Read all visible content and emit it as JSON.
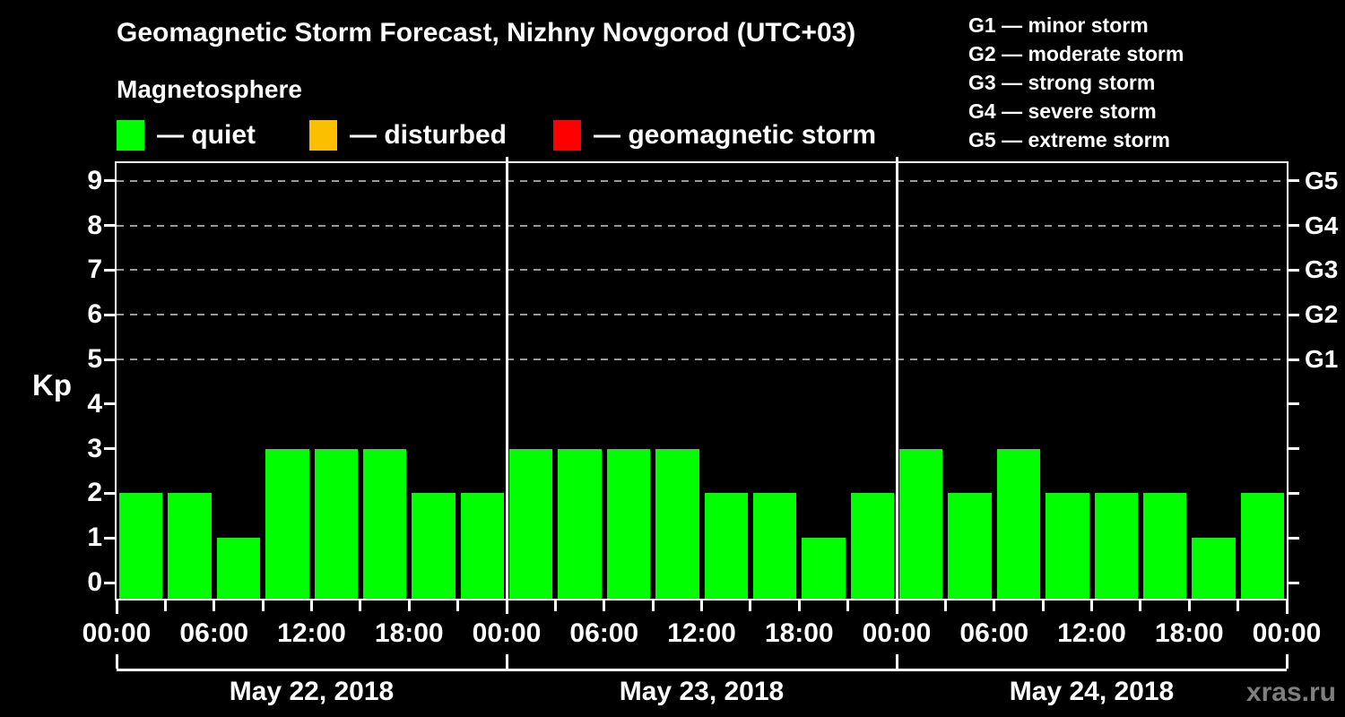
{
  "header": {
    "title": "Geomagnetic Storm Forecast, Nizhny Novgorod (UTC+03)",
    "subtitle": "Magnetosphere"
  },
  "condition_legend": [
    {
      "name": "quiet",
      "label": "— quiet",
      "color": "#00ff00"
    },
    {
      "name": "disturbed",
      "label": "— disturbed",
      "color": "#fcbf00"
    },
    {
      "name": "storm",
      "label": "— geomagnetic storm",
      "color": "#ff0000"
    }
  ],
  "storm_scale_legend": [
    "G1 — minor storm",
    "G2 — moderate storm",
    "G3 — strong storm",
    "G4 — severe storm",
    "G5 — extreme storm"
  ],
  "watermark": "xras.ru",
  "chart_data": {
    "type": "bar",
    "title": "Geomagnetic Storm Forecast, Nizhny Novgorod (UTC+03)",
    "ylabel": "Kp",
    "ylim": [
      0,
      9
    ],
    "yticks": [
      0,
      1,
      2,
      3,
      4,
      5,
      6,
      7,
      8,
      9
    ],
    "grid_levels_kp": [
      5,
      6,
      7,
      8,
      9
    ],
    "grid_on": true,
    "right_axis_labels": [
      {
        "kp": 5,
        "label": "G1"
      },
      {
        "kp": 6,
        "label": "G2"
      },
      {
        "kp": 7,
        "label": "G3"
      },
      {
        "kp": 8,
        "label": "G4"
      },
      {
        "kp": 9,
        "label": "G5"
      }
    ],
    "interval_hours": 3,
    "x_tick_labels": [
      "00:00",
      "06:00",
      "12:00",
      "18:00",
      "00:00",
      "06:00",
      "12:00",
      "18:00",
      "00:00",
      "06:00",
      "12:00",
      "18:00",
      "00:00"
    ],
    "days": [
      {
        "date": "May 22, 2018",
        "values": [
          2,
          2,
          1,
          3,
          3,
          3,
          2,
          2
        ]
      },
      {
        "date": "May 23, 2018",
        "values": [
          3,
          3,
          3,
          3,
          2,
          2,
          1,
          2
        ]
      },
      {
        "date": "May 24, 2018",
        "values": [
          3,
          2,
          3,
          2,
          2,
          2,
          1,
          2
        ]
      }
    ],
    "colors": {
      "background": "#000000",
      "axis": "#ffffff",
      "grid": "#999999",
      "text": "#ffffff",
      "watermark": "#7f7f7f"
    }
  }
}
